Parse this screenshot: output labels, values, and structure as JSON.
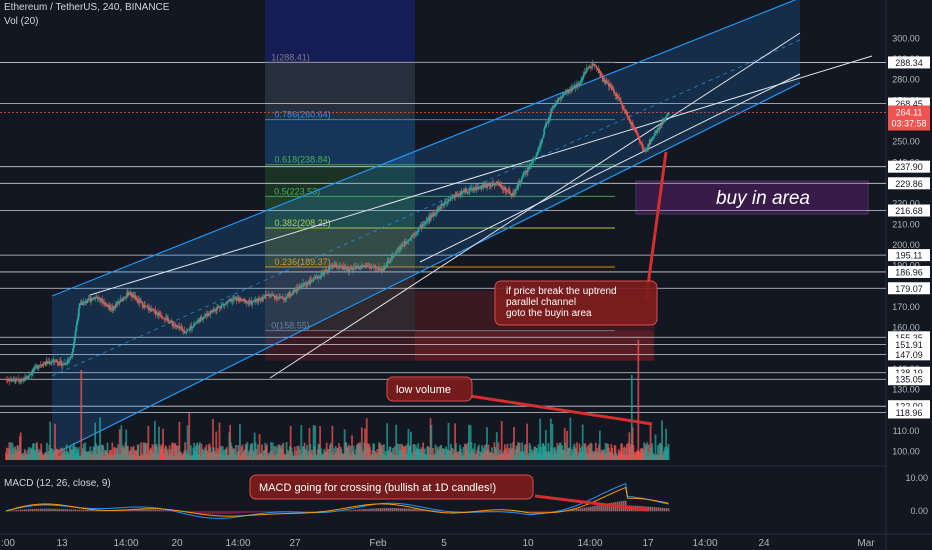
{
  "header": {
    "symbol_line": "Ethereum / TetherUS, 240, BINANCE",
    "volume_line": "Vol (20)",
    "macd_line": "MACD (12, 26, close, 9)"
  },
  "chart_data": {
    "type": "candlestick",
    "symbol": "Ethereum / TetherUS",
    "interval": "240",
    "exchange": "BINANCE",
    "ylim": [
      95,
      305
    ],
    "y_ticks": [
      100,
      110,
      120,
      130,
      140,
      150,
      160,
      170,
      180,
      190,
      200,
      210,
      220,
      230,
      240,
      250,
      260,
      270,
      280,
      290,
      300
    ],
    "x_labels": [
      ":00",
      "13",
      "14:00",
      "20",
      "14:00",
      "27",
      "Feb",
      "5",
      "10",
      "14:00",
      "17",
      "14:00",
      "24",
      "Mar"
    ],
    "price_path": [
      [
        0,
        135
      ],
      [
        2,
        134
      ],
      [
        4,
        142
      ],
      [
        6,
        144
      ],
      [
        7,
        142
      ],
      [
        8,
        146
      ],
      [
        9,
        171
      ],
      [
        11,
        175
      ],
      [
        13,
        169
      ],
      [
        15,
        177
      ],
      [
        17,
        170
      ],
      [
        19,
        166
      ],
      [
        21,
        160
      ],
      [
        22,
        158
      ],
      [
        24,
        165
      ],
      [
        26,
        170
      ],
      [
        28,
        174
      ],
      [
        30,
        172
      ],
      [
        32,
        176
      ],
      [
        34,
        174
      ],
      [
        36,
        180
      ],
      [
        38,
        184
      ],
      [
        40,
        190
      ],
      [
        42,
        188
      ],
      [
        44,
        190
      ],
      [
        46,
        188
      ],
      [
        48,
        198
      ],
      [
        50,
        206
      ],
      [
        52,
        214
      ],
      [
        54,
        222
      ],
      [
        56,
        226
      ],
      [
        58,
        228
      ],
      [
        60,
        230
      ],
      [
        62,
        224
      ],
      [
        63,
        232
      ],
      [
        64,
        238
      ],
      [
        65,
        245
      ],
      [
        66,
        258
      ],
      [
        67,
        268
      ],
      [
        68,
        272
      ],
      [
        70,
        278
      ],
      [
        71,
        285
      ],
      [
        72,
        288
      ],
      [
        73,
        280
      ],
      [
        74,
        276
      ],
      [
        75,
        270
      ],
      [
        76,
        262
      ],
      [
        77,
        255
      ],
      [
        78,
        245
      ],
      [
        79,
        252
      ],
      [
        80,
        258
      ],
      [
        81,
        264.11
      ]
    ],
    "current_price": "264.11",
    "countdown": "03:37:58",
    "horizontal_levels": [
      "288.34",
      "268.45",
      "237.90",
      "229.86",
      "216.68",
      "195.11",
      "186.96",
      "179.07",
      "155.35",
      "151.91",
      "147.09",
      "138.19",
      "135.05",
      "122.00",
      "118.96"
    ],
    "fibonacci_levels": [
      {
        "label": "1(288.41)",
        "value": 288.41,
        "color": "#787b86"
      },
      {
        "label": "0.786(260.64)",
        "value": 260.64,
        "color": "#2196f3"
      },
      {
        "label": "0.618(238.84)",
        "value": 238.84,
        "color": "#4caf50"
      },
      {
        "label": "0.5(223.53)",
        "value": 223.53,
        "color": "#4caf50"
      },
      {
        "label": "0.382(208.22)",
        "value": 208.22,
        "color": "#cddc39"
      },
      {
        "label": "0.236(189.37)",
        "value": 189.37,
        "color": "#ff9800"
      },
      {
        "label": "0(158.55)",
        "value": 158.55,
        "color": "#787b86"
      }
    ],
    "volume": {
      "label": "Vol (20)"
    },
    "macd": {
      "label": "MACD (12, 26, close, 9)",
      "y_ticks": [
        "10.00",
        "0.00"
      ]
    },
    "annotations": {
      "buy_area": "buy in area",
      "channel_break": [
        "if price break the uptrend",
        "parallel channel",
        "goto the buyin area"
      ],
      "low_volume": "low volume",
      "macd_note": "MACD going for crossing (bullish at 1D candles!)"
    },
    "colors": {
      "up": "#26a69a",
      "down": "#ef5350",
      "channel": "#2196f3",
      "buy_area": "#9c27b0",
      "note": "#b71c1c"
    }
  }
}
